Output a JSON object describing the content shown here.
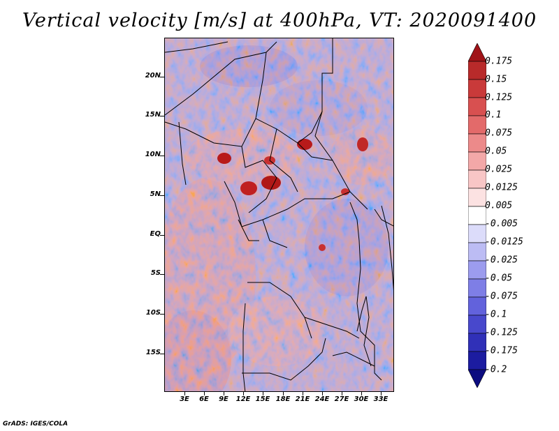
{
  "title": "Vertical velocity [m/s] at 400hPa, VT: 2020091400",
  "footer": "GrADS: IGES/COLA",
  "map": {
    "lat_labels": [
      "20N",
      "15N",
      "10N",
      "5N",
      "EQ",
      "5S",
      "10S",
      "15S"
    ],
    "lon_labels": [
      "3E",
      "6E",
      "9E",
      "12E",
      "15E",
      "18E",
      "21E",
      "24E",
      "27E",
      "30E",
      "33E"
    ]
  },
  "colorbar": {
    "labels": [
      "0.175",
      "0.15",
      "0.125",
      "0.1",
      "0.075",
      "0.05",
      "0.025",
      "0.0125",
      "0.005",
      "-0.005",
      "-0.0125",
      "-0.025",
      "-0.05",
      "-0.075",
      "-0.1",
      "-0.125",
      "-0.175",
      "-0.2"
    ],
    "colors": [
      "#a01418",
      "#b82a2a",
      "#c93a3a",
      "#d85050",
      "#e36a6a",
      "#ec8a8a",
      "#f3a8a8",
      "#f8c6c6",
      "#fce2e2",
      "#ffffff",
      "#dcdcfa",
      "#bcbcf4",
      "#9c9cee",
      "#7e7ee6",
      "#6262dc",
      "#4848cc",
      "#3030b8",
      "#1c1ca0",
      "#0c0c80"
    ]
  }
}
